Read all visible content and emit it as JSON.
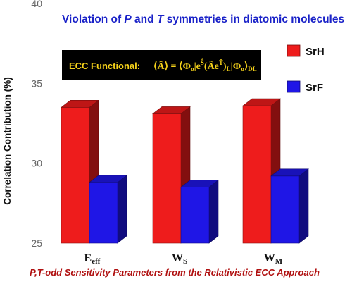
{
  "chart_data": {
    "type": "bar",
    "title_parts": {
      "t1": "Violation of ",
      "p": "P",
      "t2": " and ",
      "t": "T",
      "t3": " symmetries in diatomic molecules"
    },
    "subtitle_parts": {
      "pt": "P,T",
      "rest": "-odd Sensitivity Parameters from the Relativistic ECC Approach"
    },
    "ylabel": "Correlation Contribution (%)",
    "ylim": [
      25,
      40
    ],
    "yticks": [
      25,
      30,
      35,
      40
    ],
    "categories": [
      {
        "main": "E",
        "sub": "eff"
      },
      {
        "main": "W",
        "sub": "S"
      },
      {
        "main": "W",
        "sub": "M"
      }
    ],
    "series": [
      {
        "name": "SrH",
        "color": "#ee1c1c",
        "values": [
          33.5,
          33.1,
          33.6
        ]
      },
      {
        "name": "SrF",
        "color": "#1f16e6",
        "values": [
          28.8,
          28.5,
          29.2
        ]
      }
    ],
    "legend_position": "right",
    "grid": false,
    "annotation": {
      "label": "ECC Functional: ",
      "formula": "⟨Â⟩ = ⟨Φ₀|e^Ŝ†(Âe^T̂)_L|Φ₀⟩_DL",
      "formula_parts": {
        "open": "⟨Â⟩ = ⟨Φ",
        "o1": "o",
        "mid": "|e",
        "shat": "Ŝ",
        "paren": "(Âe",
        "that": "T̂",
        "close": ")",
        "L": "L",
        "bar": "|Φ",
        "o2": "o",
        "end": "⟩",
        "DL": "DL"
      },
      "background": "#000000",
      "text_color": "#f5d21a"
    }
  }
}
